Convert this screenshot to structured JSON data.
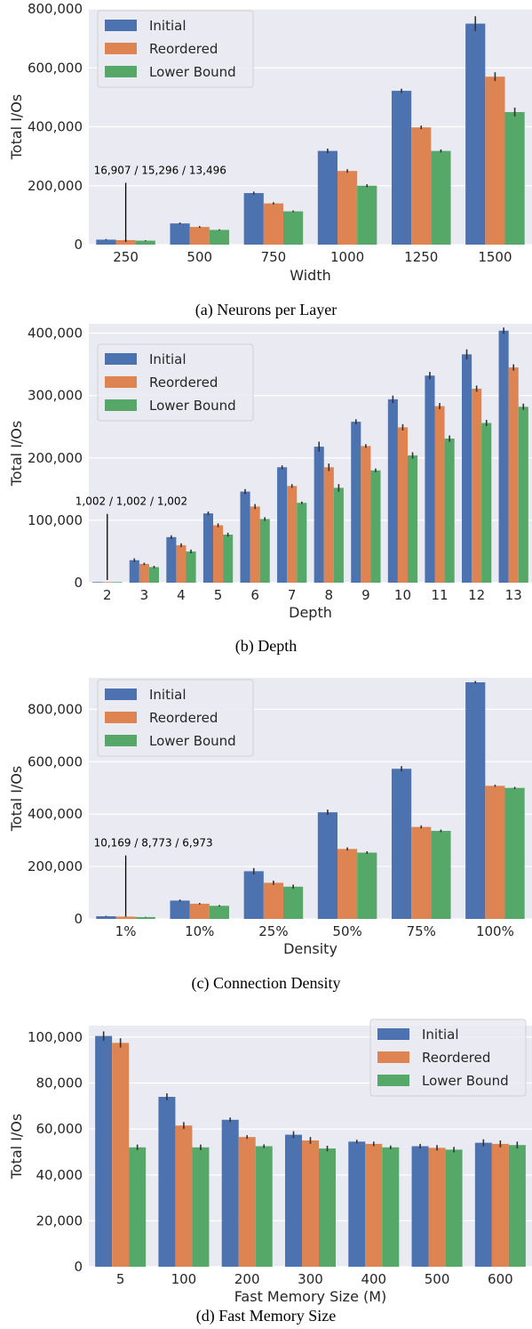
{
  "colors": {
    "Initial": "#4c72b0",
    "Reordered": "#dd8452",
    "Lower Bound": "#55a868",
    "panel_bg": "#eaeaf2",
    "grid": "#ffffff"
  },
  "chart_data": [
    {
      "type": "bar",
      "caption": "(a) Neurons per Layer",
      "xlabel": "Width",
      "ylabel": "Total I/Os",
      "categories": [
        "250",
        "500",
        "750",
        "1000",
        "1250",
        "1500"
      ],
      "ylim": [
        0,
        800000
      ],
      "yticks": [
        0,
        200000,
        400000,
        600000,
        800000
      ],
      "ytick_labels": [
        "0",
        "200,000",
        "400,000",
        "600,000",
        "800,000"
      ],
      "legend_position": "upper-left",
      "series": [
        {
          "name": "Initial",
          "values": [
            16907,
            72000,
            175000,
            318000,
            522000,
            750000
          ],
          "errors": [
            2000,
            3000,
            5000,
            8000,
            7000,
            25000
          ]
        },
        {
          "name": "Reordered",
          "values": [
            15296,
            60000,
            140000,
            250000,
            398000,
            570000
          ],
          "errors": [
            1500,
            3000,
            4000,
            6000,
            6000,
            15000
          ]
        },
        {
          "name": "Lower Bound",
          "values": [
            13496,
            50000,
            113000,
            200000,
            318000,
            450000
          ],
          "errors": [
            1500,
            2000,
            3000,
            5000,
            5000,
            15000
          ]
        }
      ],
      "annotation": {
        "text": "16,907 / 15,296 / 13,496",
        "category_index": 0
      }
    },
    {
      "type": "bar",
      "caption": "(b) Depth",
      "xlabel": "Depth",
      "ylabel": "Total I/Os",
      "categories": [
        "2",
        "3",
        "4",
        "5",
        "6",
        "7",
        "8",
        "9",
        "10",
        "11",
        "12",
        "13"
      ],
      "ylim": [
        0,
        415000
      ],
      "yticks": [
        0,
        100000,
        200000,
        300000,
        400000
      ],
      "ytick_labels": [
        "0",
        "100,000",
        "200,000",
        "300,000",
        "400,000"
      ],
      "legend_position": "upper-left",
      "series": [
        {
          "name": "Initial",
          "values": [
            1002,
            36000,
            73000,
            111000,
            146000,
            185000,
            218000,
            258000,
            294000,
            332000,
            366000,
            404000
          ],
          "errors": [
            0,
            3000,
            3000,
            3000,
            4000,
            3000,
            8000,
            4000,
            6000,
            6000,
            8000,
            5000
          ]
        },
        {
          "name": "Reordered",
          "values": [
            1002,
            30000,
            60000,
            92000,
            122000,
            155000,
            185000,
            219000,
            249000,
            283000,
            311000,
            345000
          ],
          "errors": [
            0,
            2000,
            3000,
            3000,
            4000,
            3000,
            6000,
            3000,
            5000,
            5000,
            5000,
            5000
          ]
        },
        {
          "name": "Lower Bound",
          "values": [
            1002,
            25000,
            50000,
            77000,
            102000,
            128000,
            152000,
            180000,
            204000,
            231000,
            256000,
            282000
          ],
          "errors": [
            0,
            2000,
            3000,
            3000,
            3000,
            2000,
            6000,
            3000,
            5000,
            5000,
            5000,
            5000
          ]
        }
      ],
      "annotation": {
        "text": "1,002 / 1,002 / 1,002",
        "category_index": 0
      }
    },
    {
      "type": "bar",
      "caption": "(c) Connection Density",
      "xlabel": "Density",
      "ylabel": "Total I/Os",
      "categories": [
        "1%",
        "10%",
        "25%",
        "50%",
        "75%",
        "100%"
      ],
      "ylim": [
        0,
        920000
      ],
      "yticks": [
        0,
        200000,
        400000,
        600000,
        800000
      ],
      "ytick_labels": [
        "0",
        "200,000",
        "400,000",
        "600,000",
        "800,000"
      ],
      "legend_position": "upper-left",
      "series": [
        {
          "name": "Initial",
          "values": [
            10169,
            70000,
            182000,
            407000,
            573000,
            903000
          ],
          "errors": [
            1500,
            4000,
            12000,
            10000,
            10000,
            5000
          ]
        },
        {
          "name": "Reordered",
          "values": [
            8773,
            58000,
            138000,
            267000,
            351000,
            508000
          ],
          "errors": [
            1000,
            3000,
            8000,
            6000,
            6000,
            4000
          ]
        },
        {
          "name": "Lower Bound",
          "values": [
            6973,
            50000,
            123000,
            253000,
            336000,
            500000
          ],
          "errors": [
            1000,
            3000,
            8000,
            5000,
            5000,
            4000
          ]
        }
      ],
      "annotation": {
        "text": "10,169 / 8,773 / 6,973",
        "category_index": 0
      }
    },
    {
      "type": "bar",
      "caption": "(d) Fast Memory Size",
      "xlabel": "Fast Memory Size (M)",
      "ylabel": "Total I/Os",
      "categories": [
        "5",
        "100",
        "200",
        "300",
        "400",
        "500",
        "600"
      ],
      "ylim": [
        0,
        105000
      ],
      "yticks": [
        0,
        20000,
        40000,
        60000,
        80000,
        100000
      ],
      "ytick_labels": [
        "0",
        "20,000",
        "40,000",
        "60,000",
        "80,000",
        "100,000"
      ],
      "legend_position": "upper-right",
      "series": [
        {
          "name": "Initial",
          "values": [
            100500,
            74000,
            64000,
            57500,
            54500,
            52500,
            54000
          ],
          "errors": [
            2000,
            1500,
            1000,
            1500,
            800,
            1000,
            1500
          ]
        },
        {
          "name": "Reordered",
          "values": [
            97500,
            61500,
            56500,
            55000,
            53500,
            51800,
            53500
          ],
          "errors": [
            2000,
            1500,
            800,
            1500,
            1000,
            1200,
            1500
          ]
        },
        {
          "name": "Lower Bound",
          "values": [
            52000,
            52000,
            52500,
            51500,
            52000,
            51000,
            53000
          ],
          "errors": [
            1200,
            1200,
            800,
            1200,
            800,
            1200,
            1500
          ]
        }
      ]
    }
  ]
}
